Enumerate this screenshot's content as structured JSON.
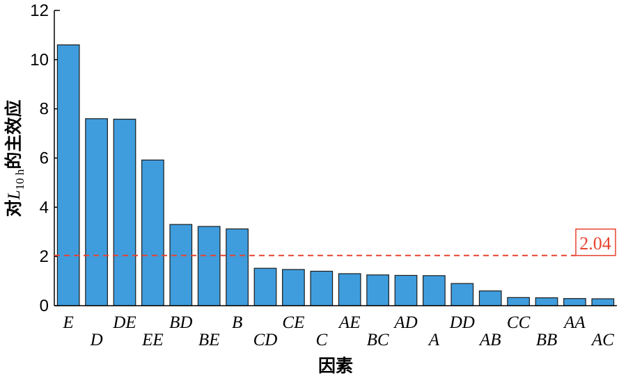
{
  "chart_data": {
    "type": "bar",
    "ylabel": [
      "对",
      "L",
      "10 h",
      "的主效应"
    ],
    "xlabel": "因素",
    "categories": [
      "E",
      "D",
      "DE",
      "EE",
      "BD",
      "BE",
      "B",
      "CD",
      "CE",
      "C",
      "AE",
      "BC",
      "AD",
      "A",
      "DD",
      "AB",
      "CC",
      "BB",
      "AA",
      "AC"
    ],
    "values": [
      10.6,
      7.6,
      7.58,
      5.92,
      3.3,
      3.22,
      3.12,
      1.52,
      1.47,
      1.4,
      1.3,
      1.25,
      1.23,
      1.22,
      0.9,
      0.6,
      0.33,
      0.32,
      0.29,
      0.28
    ],
    "color": "#3f9ddd",
    "ylim": [
      0,
      12
    ],
    "yticks": [
      0,
      2,
      4,
      6,
      8,
      10,
      12
    ],
    "threshold": 2.04,
    "threshold_color": "#e8432f"
  }
}
